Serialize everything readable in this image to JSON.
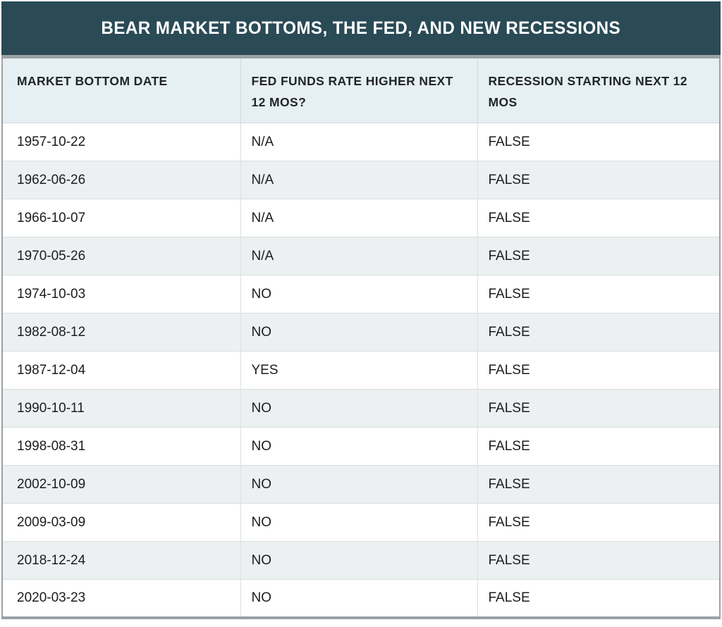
{
  "title": "BEAR MARKET BOTTOMS, THE FED, AND NEW RECESSIONS",
  "chart_data": {
    "type": "table",
    "title": "BEAR MARKET BOTTOMS, THE FED, AND NEW RECESSIONS",
    "columns": [
      "MARKET BOTTOM DATE",
      "FED FUNDS RATE HIGHER NEXT 12 MOS?",
      "RECESSION STARTING NEXT 12 MOS"
    ],
    "rows": [
      [
        "1957-10-22",
        "N/A",
        "FALSE"
      ],
      [
        "1962-06-26",
        "N/A",
        "FALSE"
      ],
      [
        "1966-10-07",
        "N/A",
        "FALSE"
      ],
      [
        "1970-05-26",
        "N/A",
        "FALSE"
      ],
      [
        "1974-10-03",
        "NO",
        "FALSE"
      ],
      [
        "1982-08-12",
        "NO",
        "FALSE"
      ],
      [
        "1987-12-04",
        "YES",
        "FALSE"
      ],
      [
        "1990-10-11",
        "NO",
        "FALSE"
      ],
      [
        "1998-08-31",
        "NO",
        "FALSE"
      ],
      [
        "2002-10-09",
        "NO",
        "FALSE"
      ],
      [
        "2009-03-09",
        "NO",
        "FALSE"
      ],
      [
        "2018-12-24",
        "NO",
        "FALSE"
      ],
      [
        "2020-03-23",
        "NO",
        "FALSE"
      ]
    ]
  },
  "colors": {
    "title_bar_bg": "#2a4a56",
    "title_text": "#ffffff",
    "header_row_bg": "#e5eff4",
    "row_bg": "#ffffff",
    "row_alt_bg": "#edf0f1",
    "grid_line": "#dadee0",
    "outer_border": "#9aa0a4",
    "cell_text": "#1a1c1e"
  }
}
